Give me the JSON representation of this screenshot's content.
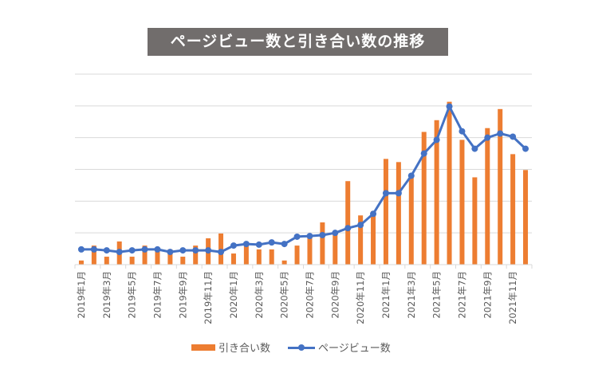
{
  "chart_data": {
    "type": "bar+line",
    "title": "ページビュー数と引き合い数の推移",
    "xlabel": "",
    "ylabel": "",
    "ylim": [
      0,
      6
    ],
    "y_tick_labels_shown": false,
    "grid": true,
    "legend_position": "bottom",
    "categories": [
      "2019年1月",
      "2019年2月",
      "2019年3月",
      "2019年4月",
      "2019年5月",
      "2019年6月",
      "2019年7月",
      "2019年8月",
      "2019年9月",
      "2019年10月",
      "2019年11月",
      "2019年12月",
      "2020年1月",
      "2020年2月",
      "2020年3月",
      "2020年4月",
      "2020年5月",
      "2020年6月",
      "2020年7月",
      "2020年8月",
      "2020年9月",
      "2020年10月",
      "2020年11月",
      "2020年12月",
      "2021年1月",
      "2021年2月",
      "2021年3月",
      "2021年4月",
      "2021年5月",
      "2021年6月",
      "2021年7月",
      "2021年8月",
      "2021年9月",
      "2021年10月",
      "2021年11月",
      "2021年12月"
    ],
    "x_tick_labels": [
      "2019年1月",
      "2019年3月",
      "2019年5月",
      "2019年7月",
      "2019年9月",
      "2019年11月",
      "2020年1月",
      "2020年3月",
      "2020年5月",
      "2020年7月",
      "2020年9月",
      "2020年11月",
      "2021年1月",
      "2021年3月",
      "2021年5月",
      "2021年7月",
      "2021年9月",
      "2021年11月"
    ],
    "series": [
      {
        "name": "引き合い数",
        "kind": "bar",
        "color": "#ed7d31",
        "values": [
          0.13,
          0.6,
          0.25,
          0.73,
          0.25,
          0.6,
          0.48,
          0.48,
          0.25,
          0.6,
          0.83,
          0.98,
          0.35,
          0.63,
          0.48,
          0.48,
          0.13,
          0.6,
          0.88,
          1.33,
          1.05,
          2.63,
          1.55,
          1.68,
          3.33,
          3.23,
          2.8,
          4.18,
          4.55,
          5.13,
          3.93,
          2.75,
          4.3,
          4.9,
          3.48,
          2.98
        ]
      },
      {
        "name": "ページビュー数",
        "kind": "line",
        "color": "#4472c4",
        "values": [
          0.48,
          0.48,
          0.45,
          0.4,
          0.45,
          0.48,
          0.48,
          0.4,
          0.45,
          0.45,
          0.45,
          0.4,
          0.6,
          0.65,
          0.63,
          0.7,
          0.65,
          0.88,
          0.9,
          0.93,
          1.0,
          1.15,
          1.25,
          1.6,
          2.25,
          2.25,
          2.8,
          3.5,
          3.93,
          4.98,
          4.2,
          3.65,
          4.0,
          4.13,
          4.03,
          3.65
        ]
      }
    ]
  }
}
